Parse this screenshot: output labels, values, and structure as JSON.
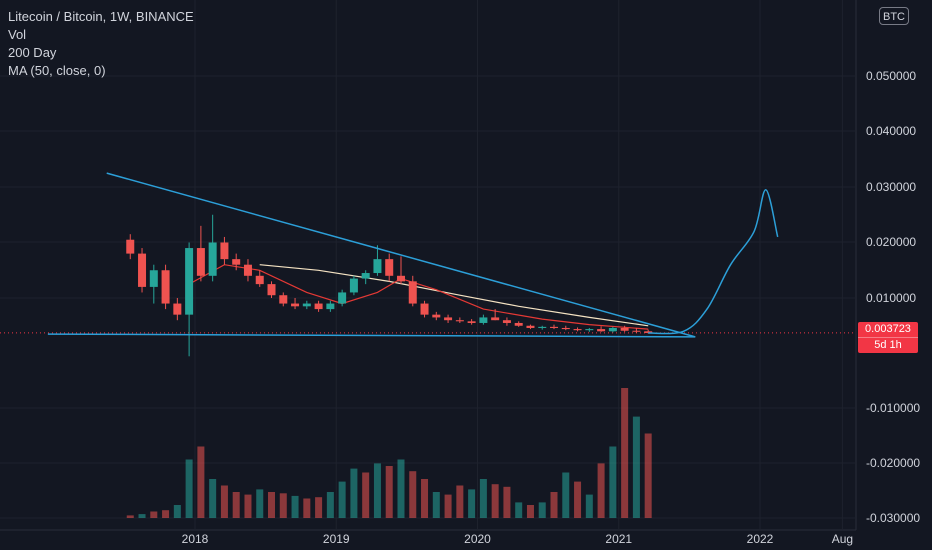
{
  "legend": {
    "title": "Litecoin / Bitcoin, 1W, BINANCE",
    "lines": [
      "Vol",
      "200 Day",
      "MA (50, close, 0)"
    ]
  },
  "currency_badge": "BTC",
  "price_badge": {
    "price": "0.003723",
    "countdown": "5d 1h"
  },
  "colors": {
    "background": "#131722",
    "grid": "#1e222d",
    "up": "#26a69a",
    "down": "#ef5350",
    "trendline": "#2c9fd8",
    "ma_fast": "#e53935",
    "ma_slow": "#f5e3c3",
    "price_line": "#f23645",
    "axis_text": "#d1d4dc"
  },
  "chart_data": {
    "type": "candlestick",
    "title": "Litecoin / Bitcoin, 1W, BINANCE",
    "x_ticks": [
      "2018",
      "2019",
      "2020",
      "2021",
      "2022",
      "Aug"
    ],
    "y_ticks": [
      "0.050000",
      "0.040000",
      "0.030000",
      "0.020000",
      "0.010000",
      "-0.010000",
      "-0.020000",
      "-0.030000"
    ],
    "y_range": [
      -0.0325,
      0.0585
    ],
    "last_price": 0.003723,
    "price_series": [
      {
        "date": "2017-07",
        "o": 0.0205,
        "h": 0.0215,
        "l": 0.017,
        "c": 0.018
      },
      {
        "date": "2017-08",
        "o": 0.018,
        "h": 0.019,
        "l": 0.011,
        "c": 0.012
      },
      {
        "date": "2017-09",
        "o": 0.012,
        "h": 0.016,
        "l": 0.009,
        "c": 0.015
      },
      {
        "date": "2017-10",
        "o": 0.015,
        "h": 0.016,
        "l": 0.008,
        "c": 0.009
      },
      {
        "date": "2017-11",
        "o": 0.009,
        "h": 0.01,
        "l": 0.006,
        "c": 0.007
      },
      {
        "date": "2017-12",
        "o": 0.007,
        "h": 0.02,
        "l": -0.0005,
        "c": 0.019
      },
      {
        "date": "2018-01",
        "o": 0.019,
        "h": 0.023,
        "l": 0.013,
        "c": 0.014
      },
      {
        "date": "2018-02",
        "o": 0.014,
        "h": 0.025,
        "l": 0.013,
        "c": 0.02
      },
      {
        "date": "2018-03",
        "o": 0.02,
        "h": 0.021,
        "l": 0.016,
        "c": 0.017
      },
      {
        "date": "2018-04",
        "o": 0.017,
        "h": 0.018,
        "l": 0.015,
        "c": 0.016
      },
      {
        "date": "2018-05",
        "o": 0.016,
        "h": 0.017,
        "l": 0.013,
        "c": 0.014
      },
      {
        "date": "2018-06",
        "o": 0.014,
        "h": 0.015,
        "l": 0.012,
        "c": 0.0125
      },
      {
        "date": "2018-07",
        "o": 0.0125,
        "h": 0.013,
        "l": 0.01,
        "c": 0.0105
      },
      {
        "date": "2018-08",
        "o": 0.0105,
        "h": 0.011,
        "l": 0.0085,
        "c": 0.009
      },
      {
        "date": "2018-09",
        "o": 0.009,
        "h": 0.01,
        "l": 0.008,
        "c": 0.0085
      },
      {
        "date": "2018-10",
        "o": 0.0085,
        "h": 0.0095,
        "l": 0.008,
        "c": 0.009
      },
      {
        "date": "2018-11",
        "o": 0.009,
        "h": 0.0095,
        "l": 0.0075,
        "c": 0.008
      },
      {
        "date": "2018-12",
        "o": 0.008,
        "h": 0.0095,
        "l": 0.0075,
        "c": 0.009
      },
      {
        "date": "2019-01",
        "o": 0.009,
        "h": 0.0115,
        "l": 0.0085,
        "c": 0.011
      },
      {
        "date": "2019-02",
        "o": 0.011,
        "h": 0.014,
        "l": 0.0105,
        "c": 0.0135
      },
      {
        "date": "2019-03",
        "o": 0.0135,
        "h": 0.015,
        "l": 0.0125,
        "c": 0.0145
      },
      {
        "date": "2019-04",
        "o": 0.0145,
        "h": 0.0195,
        "l": 0.014,
        "c": 0.017
      },
      {
        "date": "2019-05",
        "o": 0.017,
        "h": 0.018,
        "l": 0.013,
        "c": 0.014
      },
      {
        "date": "2019-06",
        "o": 0.014,
        "h": 0.0175,
        "l": 0.0125,
        "c": 0.013
      },
      {
        "date": "2019-07",
        "o": 0.013,
        "h": 0.014,
        "l": 0.0085,
        "c": 0.009
      },
      {
        "date": "2019-08",
        "o": 0.009,
        "h": 0.0095,
        "l": 0.0065,
        "c": 0.007
      },
      {
        "date": "2019-09",
        "o": 0.007,
        "h": 0.0075,
        "l": 0.006,
        "c": 0.0065
      },
      {
        "date": "2019-10",
        "o": 0.0065,
        "h": 0.007,
        "l": 0.0055,
        "c": 0.006
      },
      {
        "date": "2019-11",
        "o": 0.006,
        "h": 0.0065,
        "l": 0.0055,
        "c": 0.0058
      },
      {
        "date": "2019-12",
        "o": 0.0058,
        "h": 0.0062,
        "l": 0.0052,
        "c": 0.0055
      },
      {
        "date": "2020-01",
        "o": 0.0055,
        "h": 0.007,
        "l": 0.0052,
        "c": 0.0065
      },
      {
        "date": "2020-02",
        "o": 0.0065,
        "h": 0.008,
        "l": 0.006,
        "c": 0.006
      },
      {
        "date": "2020-03",
        "o": 0.006,
        "h": 0.0065,
        "l": 0.005,
        "c": 0.0055
      },
      {
        "date": "2020-04",
        "o": 0.0055,
        "h": 0.0058,
        "l": 0.0048,
        "c": 0.005
      },
      {
        "date": "2020-05",
        "o": 0.005,
        "h": 0.0052,
        "l": 0.0044,
        "c": 0.0046
      },
      {
        "date": "2020-06",
        "o": 0.0046,
        "h": 0.005,
        "l": 0.0043,
        "c": 0.0048
      },
      {
        "date": "2020-07",
        "o": 0.0048,
        "h": 0.0052,
        "l": 0.0044,
        "c": 0.0046
      },
      {
        "date": "2020-08",
        "o": 0.0046,
        "h": 0.005,
        "l": 0.0042,
        "c": 0.0044
      },
      {
        "date": "2020-09",
        "o": 0.0044,
        "h": 0.0047,
        "l": 0.004,
        "c": 0.0042
      },
      {
        "date": "2020-10",
        "o": 0.0042,
        "h": 0.0046,
        "l": 0.0039,
        "c": 0.0044
      },
      {
        "date": "2020-11",
        "o": 0.0044,
        "h": 0.0049,
        "l": 0.0039,
        "c": 0.004
      },
      {
        "date": "2020-12",
        "o": 0.004,
        "h": 0.0048,
        "l": 0.0038,
        "c": 0.0046
      },
      {
        "date": "2021-01",
        "o": 0.0046,
        "h": 0.005,
        "l": 0.0039,
        "c": 0.0041
      },
      {
        "date": "2021-02",
        "o": 0.0041,
        "h": 0.0046,
        "l": 0.0037,
        "c": 0.004
      },
      {
        "date": "2021-03",
        "o": 0.004,
        "h": 0.0043,
        "l": 0.0036,
        "c": 0.0037
      }
    ],
    "ma_fast": [
      {
        "date": "2017-12",
        "v": 0.0125
      },
      {
        "date": "2018-03",
        "v": 0.016
      },
      {
        "date": "2018-06",
        "v": 0.015
      },
      {
        "date": "2018-10",
        "v": 0.011
      },
      {
        "date": "2019-01",
        "v": 0.009
      },
      {
        "date": "2019-04",
        "v": 0.011
      },
      {
        "date": "2019-06",
        "v": 0.0135
      },
      {
        "date": "2019-09",
        "v": 0.0115
      },
      {
        "date": "2020-01",
        "v": 0.008
      },
      {
        "date": "2020-06",
        "v": 0.0062
      },
      {
        "date": "2020-10",
        "v": 0.0052
      },
      {
        "date": "2021-03",
        "v": 0.0044
      }
    ],
    "ma_slow": [
      {
        "date": "2018-06",
        "v": 0.016
      },
      {
        "date": "2018-11",
        "v": 0.015
      },
      {
        "date": "2019-05",
        "v": 0.013
      },
      {
        "date": "2019-11",
        "v": 0.0105
      },
      {
        "date": "2020-04",
        "v": 0.0085
      },
      {
        "date": "2020-10",
        "v": 0.0065
      },
      {
        "date": "2021-03",
        "v": 0.005
      }
    ],
    "volume_bars": [
      {
        "date": "2017-07",
        "dir": "down",
        "v": 0.02
      },
      {
        "date": "2017-08",
        "dir": "up",
        "v": 0.03
      },
      {
        "date": "2017-09",
        "dir": "down",
        "v": 0.05
      },
      {
        "date": "2017-10",
        "dir": "down",
        "v": 0.06
      },
      {
        "date": "2017-11",
        "dir": "up",
        "v": 0.1
      },
      {
        "date": "2017-12",
        "dir": "up",
        "v": 0.45
      },
      {
        "date": "2018-01",
        "dir": "down",
        "v": 0.55
      },
      {
        "date": "2018-02",
        "dir": "up",
        "v": 0.3
      },
      {
        "date": "2018-03",
        "dir": "down",
        "v": 0.25
      },
      {
        "date": "2018-04",
        "dir": "down",
        "v": 0.2
      },
      {
        "date": "2018-05",
        "dir": "down",
        "v": 0.18
      },
      {
        "date": "2018-06",
        "dir": "up",
        "v": 0.22
      },
      {
        "date": "2018-07",
        "dir": "down",
        "v": 0.2
      },
      {
        "date": "2018-08",
        "dir": "down",
        "v": 0.19
      },
      {
        "date": "2018-09",
        "dir": "up",
        "v": 0.17
      },
      {
        "date": "2018-10",
        "dir": "down",
        "v": 0.15
      },
      {
        "date": "2018-11",
        "dir": "down",
        "v": 0.16
      },
      {
        "date": "2018-12",
        "dir": "up",
        "v": 0.2
      },
      {
        "date": "2019-01",
        "dir": "up",
        "v": 0.28
      },
      {
        "date": "2019-02",
        "dir": "up",
        "v": 0.38
      },
      {
        "date": "2019-03",
        "dir": "down",
        "v": 0.35
      },
      {
        "date": "2019-04",
        "dir": "up",
        "v": 0.42
      },
      {
        "date": "2019-05",
        "dir": "down",
        "v": 0.4
      },
      {
        "date": "2019-06",
        "dir": "up",
        "v": 0.45
      },
      {
        "date": "2019-07",
        "dir": "down",
        "v": 0.36
      },
      {
        "date": "2019-08",
        "dir": "down",
        "v": 0.3
      },
      {
        "date": "2019-09",
        "dir": "up",
        "v": 0.2
      },
      {
        "date": "2019-10",
        "dir": "down",
        "v": 0.18
      },
      {
        "date": "2019-11",
        "dir": "down",
        "v": 0.25
      },
      {
        "date": "2019-12",
        "dir": "up",
        "v": 0.22
      },
      {
        "date": "2020-01",
        "dir": "up",
        "v": 0.3
      },
      {
        "date": "2020-02",
        "dir": "down",
        "v": 0.26
      },
      {
        "date": "2020-03",
        "dir": "down",
        "v": 0.24
      },
      {
        "date": "2020-04",
        "dir": "up",
        "v": 0.12
      },
      {
        "date": "2020-05",
        "dir": "down",
        "v": 0.1
      },
      {
        "date": "2020-06",
        "dir": "up",
        "v": 0.12
      },
      {
        "date": "2020-07",
        "dir": "down",
        "v": 0.2
      },
      {
        "date": "2020-08",
        "dir": "up",
        "v": 0.35
      },
      {
        "date": "2020-09",
        "dir": "down",
        "v": 0.28
      },
      {
        "date": "2020-10",
        "dir": "up",
        "v": 0.18
      },
      {
        "date": "2020-11",
        "dir": "down",
        "v": 0.42
      },
      {
        "date": "2020-12",
        "dir": "up",
        "v": 0.55
      },
      {
        "date": "2021-01",
        "dir": "down",
        "v": 1.0
      },
      {
        "date": "2021-02",
        "dir": "up",
        "v": 0.78
      },
      {
        "date": "2021-03",
        "dir": "down",
        "v": 0.65
      }
    ],
    "trendline_upper": [
      {
        "date": "2017-05",
        "v": 0.0325
      },
      {
        "date": "2021-07",
        "v": 0.003
      }
    ],
    "trendline_lower": [
      {
        "date": "2016-12",
        "v": 0.0035
      },
      {
        "date": "2021-07",
        "v": 0.003
      }
    ],
    "projection": [
      {
        "date": "2021-03",
        "v": 0.0037
      },
      {
        "date": "2021-06",
        "v": 0.004
      },
      {
        "date": "2021-08",
        "v": 0.008
      },
      {
        "date": "2021-10",
        "v": 0.016
      },
      {
        "date": "2021-12",
        "v": 0.022
      },
      {
        "date": "2022-01",
        "v": 0.0295
      },
      {
        "date": "2022-02",
        "v": 0.021
      }
    ]
  }
}
